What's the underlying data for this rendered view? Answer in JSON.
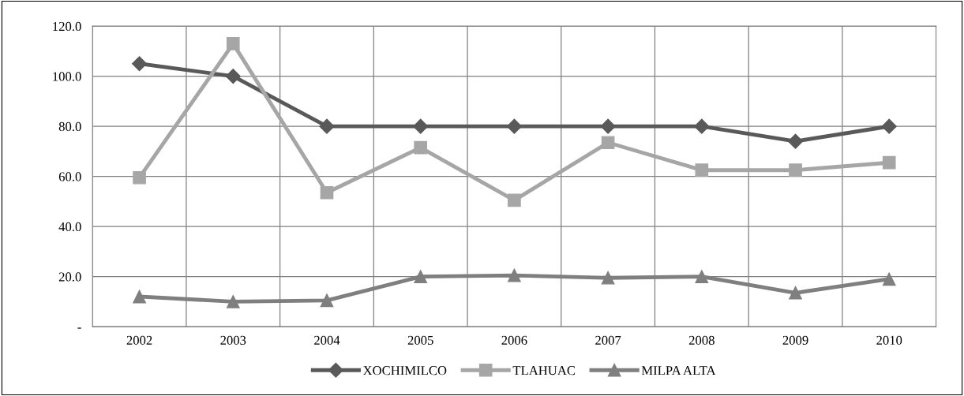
{
  "chart_data": {
    "type": "line",
    "categories": [
      "2002",
      "2003",
      "2004",
      "2005",
      "2006",
      "2007",
      "2008",
      "2009",
      "2010"
    ],
    "series": [
      {
        "name": "XOCHIMILCO",
        "color": "#595959",
        "marker": "diamond",
        "values": [
          105,
          100,
          80,
          80,
          80,
          80,
          80,
          74,
          80
        ]
      },
      {
        "name": "TLAHUAC",
        "color": "#a6a6a6",
        "marker": "square",
        "values": [
          59.5,
          113,
          53.5,
          71.5,
          50.5,
          73.5,
          62.5,
          62.5,
          65.5
        ]
      },
      {
        "name": "MILPA ALTA",
        "color": "#7f7f7f",
        "marker": "triangle",
        "values": [
          12,
          10,
          10.5,
          20,
          20.5,
          19.5,
          20,
          13.5,
          19
        ]
      }
    ],
    "ylim": [
      0,
      120
    ],
    "yticks": [
      {
        "value": 0,
        "label": "-"
      },
      {
        "value": 20,
        "label": "20.0"
      },
      {
        "value": 40,
        "label": "40.0"
      },
      {
        "value": 60,
        "label": "60.0"
      },
      {
        "value": 80,
        "label": "80.0"
      },
      {
        "value": 100,
        "label": "100.0"
      },
      {
        "value": 120,
        "label": "120.0"
      }
    ],
    "grid": true,
    "legend": "bottom",
    "line_style": "solid"
  }
}
